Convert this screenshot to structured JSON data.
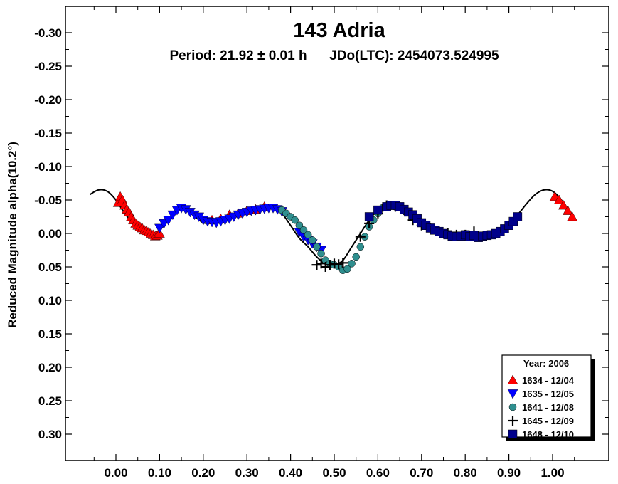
{
  "chart_data": {
    "type": "scatter",
    "title": "143 Adria",
    "subtitle": "Period: 21.92 ± 0.01 h      JDo(LTC): 2454073.524995",
    "xlabel": "",
    "ylabel": "Reduced Magnitude alpha(10.2°)",
    "xlim": [
      -0.12,
      1.12
    ],
    "ylim": [
      -0.35,
      0.35
    ],
    "y_inverted": true,
    "x_ticks": [
      "0.00",
      "0.10",
      "0.20",
      "0.30",
      "0.40",
      "0.50",
      "0.60",
      "0.70",
      "0.80",
      "0.90",
      "1.00"
    ],
    "y_ticks": [
      "-0.30",
      "-0.25",
      "-0.20",
      "-0.15",
      "-0.10",
      "-0.05",
      "0.00",
      "0.05",
      "0.10",
      "0.15",
      "0.20",
      "0.25",
      "0.30"
    ],
    "legend": {
      "title": "Year: 2006",
      "position": "bottom-right",
      "entries": [
        {
          "label": "1634 - 12/04",
          "marker": "triangle-up",
          "color": "#ff0000"
        },
        {
          "label": "1635 - 12/05",
          "marker": "triangle-down",
          "color": "#0000ff"
        },
        {
          "label": "1641 - 12/08",
          "marker": "circle",
          "color": "#2f8f8f"
        },
        {
          "label": "1645 - 12/09",
          "marker": "plus",
          "color": "#000000"
        },
        {
          "label": "1648 - 12/10",
          "marker": "square",
          "color": "#00008b"
        }
      ]
    },
    "fit_curve": {
      "x": [
        -0.06,
        -0.04,
        -0.02,
        0.0,
        0.02,
        0.04,
        0.06,
        0.08,
        0.1,
        0.12,
        0.14,
        0.16,
        0.18,
        0.2,
        0.22,
        0.24,
        0.26,
        0.28,
        0.3,
        0.32,
        0.34,
        0.36,
        0.38,
        0.4,
        0.42,
        0.44,
        0.46,
        0.48,
        0.5,
        0.52,
        0.54,
        0.56,
        0.58,
        0.6,
        0.62,
        0.64,
        0.66,
        0.68,
        0.7,
        0.72,
        0.74,
        0.76,
        0.78,
        0.8,
        0.82,
        0.84,
        0.86,
        0.88,
        0.9,
        0.92,
        0.94,
        0.96,
        0.98,
        1.0,
        1.02,
        1.04,
        1.05
      ],
      "y": [
        -0.058,
        -0.065,
        -0.063,
        -0.05,
        -0.03,
        -0.015,
        -0.003,
        0.002,
        -0.005,
        -0.02,
        -0.034,
        -0.036,
        -0.026,
        -0.016,
        -0.016,
        -0.02,
        -0.026,
        -0.031,
        -0.034,
        -0.035,
        -0.037,
        -0.037,
        -0.03,
        -0.012,
        0.007,
        0.02,
        0.035,
        0.046,
        0.048,
        0.04,
        0.02,
        0.0,
        -0.02,
        -0.035,
        -0.042,
        -0.043,
        -0.038,
        -0.028,
        -0.016,
        -0.008,
        -0.004,
        0.001,
        0.004,
        0.004,
        0.002,
        0.003,
        0.001,
        -0.005,
        -0.015,
        -0.028,
        -0.044,
        -0.058,
        -0.065,
        -0.063,
        -0.05,
        -0.03,
        -0.02
      ]
    },
    "series": [
      {
        "name": "1634 - 12/04",
        "x": [
          0.005,
          0.01,
          0.015,
          0.02,
          0.025,
          0.03,
          0.035,
          0.04,
          0.045,
          0.05,
          0.055,
          0.06,
          0.065,
          0.07,
          0.075,
          0.08,
          0.085,
          0.09,
          0.095,
          0.1,
          0.22,
          0.24,
          0.26,
          0.28,
          0.3,
          0.32,
          0.34,
          1.005,
          1.015,
          1.025,
          1.035,
          1.045
        ],
        "y": [
          -0.046,
          -0.055,
          -0.05,
          -0.042,
          -0.036,
          -0.032,
          -0.025,
          -0.02,
          -0.015,
          -0.012,
          -0.01,
          -0.008,
          -0.005,
          -0.004,
          -0.002,
          0.0,
          0.002,
          0.004,
          0.003,
          0.0,
          -0.02,
          -0.022,
          -0.028,
          -0.03,
          -0.034,
          -0.036,
          -0.04,
          -0.055,
          -0.05,
          -0.042,
          -0.034,
          -0.025
        ]
      },
      {
        "name": "1635 - 12/05",
        "x": [
          0.1,
          0.11,
          0.12,
          0.13,
          0.14,
          0.15,
          0.16,
          0.17,
          0.18,
          0.19,
          0.2,
          0.21,
          0.22,
          0.23,
          0.24,
          0.25,
          0.26,
          0.27,
          0.28,
          0.29,
          0.3,
          0.31,
          0.32,
          0.33,
          0.34,
          0.35,
          0.36,
          0.37,
          0.38,
          0.42,
          0.43,
          0.44,
          0.45,
          0.46,
          0.47
        ],
        "y": [
          -0.008,
          -0.015,
          -0.02,
          -0.028,
          -0.035,
          -0.038,
          -0.036,
          -0.032,
          -0.028,
          -0.025,
          -0.02,
          -0.018,
          -0.017,
          -0.016,
          -0.018,
          -0.02,
          -0.022,
          -0.025,
          -0.028,
          -0.03,
          -0.032,
          -0.034,
          -0.035,
          -0.036,
          -0.037,
          -0.038,
          -0.038,
          -0.036,
          -0.033,
          -0.002,
          0.005,
          0.01,
          0.015,
          0.02,
          0.025
        ]
      },
      {
        "name": "1641 - 12/08",
        "x": [
          0.38,
          0.39,
          0.4,
          0.41,
          0.42,
          0.43,
          0.44,
          0.45,
          0.46,
          0.47,
          0.48,
          0.49,
          0.5,
          0.51,
          0.52,
          0.53,
          0.54,
          0.55,
          0.56,
          0.57,
          0.58,
          0.59,
          0.6,
          0.61,
          0.62,
          0.63,
          0.64,
          0.66,
          0.68,
          0.7,
          0.72,
          0.74
        ],
        "y": [
          -0.035,
          -0.03,
          -0.025,
          -0.02,
          -0.012,
          -0.005,
          0.002,
          0.01,
          0.02,
          0.03,
          0.04,
          0.045,
          0.047,
          0.05,
          0.055,
          0.053,
          0.045,
          0.035,
          0.02,
          0.005,
          -0.01,
          -0.02,
          -0.03,
          -0.038,
          -0.04,
          -0.042,
          -0.04,
          -0.035,
          -0.025,
          -0.015,
          -0.008,
          -0.004
        ]
      },
      {
        "name": "1645 - 12/09",
        "x": [
          0.46,
          0.47,
          0.48,
          0.49,
          0.5,
          0.51,
          0.52,
          0.56,
          0.58,
          0.6,
          0.62,
          0.64,
          0.66,
          0.68,
          0.7,
          0.72,
          0.74,
          0.76,
          0.78,
          0.8,
          0.82
        ],
        "y": [
          0.047,
          0.045,
          0.05,
          0.047,
          0.045,
          0.046,
          0.044,
          0.005,
          -0.015,
          -0.03,
          -0.042,
          -0.04,
          -0.035,
          -0.02,
          -0.012,
          -0.008,
          -0.004,
          0.0,
          0.002,
          0.002,
          -0.003
        ]
      },
      {
        "name": "1648 - 12/10",
        "x": [
          0.58,
          0.6,
          0.62,
          0.63,
          0.64,
          0.65,
          0.66,
          0.67,
          0.68,
          0.69,
          0.7,
          0.71,
          0.72,
          0.73,
          0.74,
          0.75,
          0.76,
          0.77,
          0.78,
          0.79,
          0.8,
          0.81,
          0.82,
          0.83,
          0.84,
          0.85,
          0.86,
          0.87,
          0.88,
          0.89,
          0.9,
          0.91,
          0.92
        ],
        "y": [
          -0.025,
          -0.035,
          -0.04,
          -0.042,
          -0.042,
          -0.04,
          -0.036,
          -0.032,
          -0.028,
          -0.022,
          -0.016,
          -0.012,
          -0.008,
          -0.005,
          -0.003,
          0.0,
          0.002,
          0.004,
          0.005,
          0.004,
          0.002,
          0.005,
          0.003,
          0.006,
          0.004,
          0.003,
          0.002,
          0.0,
          -0.003,
          -0.007,
          -0.012,
          -0.018,
          -0.025
        ]
      }
    ]
  }
}
